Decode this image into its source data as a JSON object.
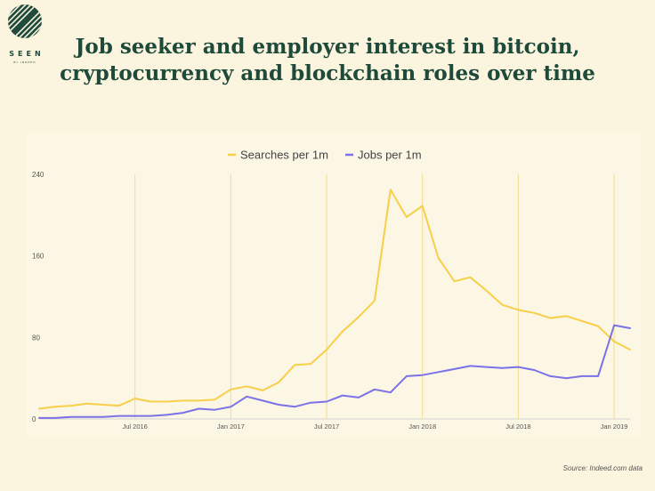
{
  "logo": {
    "word": "SEEN",
    "tagline": "BY INDEED"
  },
  "title": {
    "line1": "Job seeker and employer interest in bitcoin,",
    "line2": "cryptocurrency and blockchain roles over time"
  },
  "source": "Source: Indeed.com data",
  "colors": {
    "searches": "#f7cf48",
    "jobs": "#7a72e6",
    "grid": "#f2dc8e",
    "axis": "#d2d2d2",
    "title": "#1e4a3a"
  },
  "chart_data": {
    "type": "line",
    "title": "Job seeker and employer interest in bitcoin, cryptocurrency and blockchain roles over time",
    "xlabel": "",
    "ylabel": "",
    "ylim": [
      0,
      240
    ],
    "yticks": [
      "0",
      "80",
      "160",
      "240"
    ],
    "xticks": [
      "Jul 2016",
      "Jan 2017",
      "Jul 2017",
      "Jan 2018",
      "Jul 2018",
      "Jan 2019"
    ],
    "legend_position": "top",
    "x": [
      "Jan 2016",
      "Feb 2016",
      "Mar 2016",
      "Apr 2016",
      "May 2016",
      "Jun 2016",
      "Jul 2016",
      "Aug 2016",
      "Sep 2016",
      "Oct 2016",
      "Nov 2016",
      "Dec 2016",
      "Jan 2017",
      "Feb 2017",
      "Mar 2017",
      "Apr 2017",
      "May 2017",
      "Jun 2017",
      "Jul 2017",
      "Aug 2017",
      "Sep 2017",
      "Oct 2017",
      "Nov 2017",
      "Dec 2017",
      "Jan 2018",
      "Feb 2018",
      "Mar 2018",
      "Apr 2018",
      "May 2018",
      "Jun 2018",
      "Jul 2018",
      "Aug 2018",
      "Sep 2018",
      "Oct 2018",
      "Nov 2018",
      "Dec 2018",
      "Jan 2019",
      "Feb 2019"
    ],
    "series": [
      {
        "name": "Searches per 1m",
        "values": [
          10,
          12,
          13,
          15,
          14,
          13,
          20,
          17,
          17,
          18,
          18,
          19,
          29,
          32,
          28,
          36,
          53,
          54,
          68,
          86,
          100,
          116,
          225,
          198,
          209,
          158,
          135,
          139,
          126,
          112,
          107,
          104,
          99,
          101,
          96,
          91,
          76,
          68
        ]
      },
      {
        "name": "Jobs per 1m",
        "values": [
          1,
          1,
          2,
          2,
          2,
          3,
          3,
          3,
          4,
          6,
          10,
          9,
          12,
          22,
          18,
          14,
          12,
          16,
          17,
          23,
          21,
          29,
          26,
          42,
          43,
          46,
          49,
          52,
          51,
          50,
          51,
          48,
          42,
          40,
          42,
          42,
          92,
          89
        ]
      }
    ]
  }
}
